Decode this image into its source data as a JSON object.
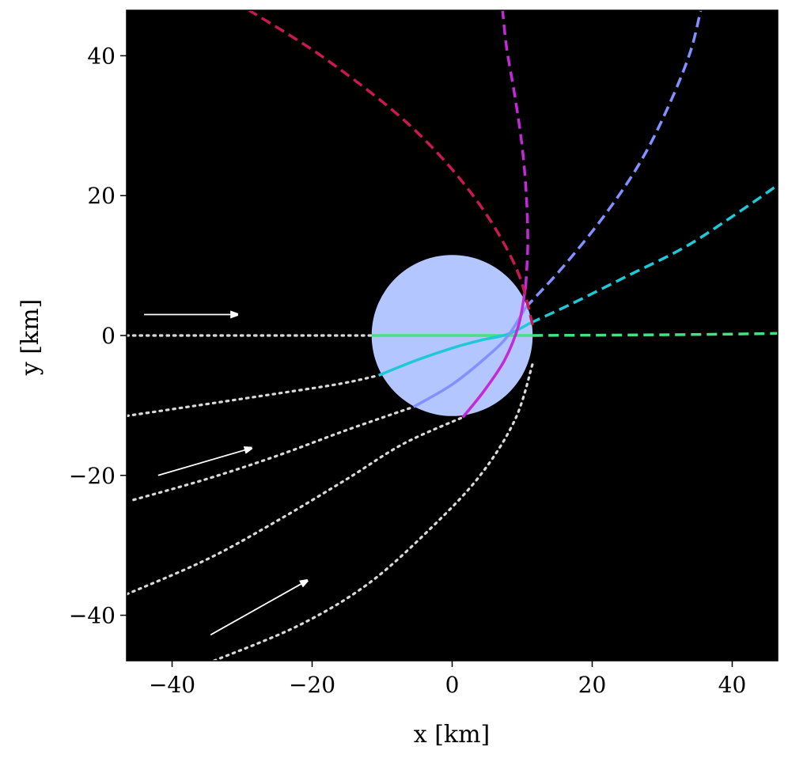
{
  "chart_data": {
    "type": "line",
    "title": "",
    "xlabel": "x [km]",
    "ylabel": "y [km]",
    "xlim": [
      -46.5,
      46.5
    ],
    "ylim": [
      -46.5,
      46.5
    ],
    "xticks": [
      -40,
      -20,
      0,
      20,
      40
    ],
    "yticks": [
      -40,
      -20,
      0,
      20,
      40
    ],
    "xtick_labels": [
      "−40",
      "−20",
      "0",
      "20",
      "40"
    ],
    "ytick_labels": [
      "−40",
      "−20",
      "0",
      "20",
      "40"
    ],
    "grid": false,
    "background_color": "#000000",
    "body": {
      "shape": "circle",
      "center": [
        0,
        0
      ],
      "radius": 11.5,
      "color": "#b3c6ff"
    },
    "series": [
      {
        "color": "#45e07f",
        "incoming": [
          [
            -46.5,
            0
          ],
          [
            -11.5,
            0
          ]
        ],
        "inside": [
          [
            -11.5,
            0
          ],
          [
            11.5,
            0
          ]
        ],
        "outgoing": [
          [
            11.5,
            0
          ],
          [
            20,
            0.05
          ],
          [
            30,
            0.1
          ],
          [
            40,
            0.2
          ],
          [
            46.5,
            0.3
          ]
        ]
      },
      {
        "color": "#1ec8d8",
        "incoming": [
          [
            -46.5,
            -11.5
          ],
          [
            -35,
            -9.8
          ],
          [
            -25,
            -8.3
          ],
          [
            -16,
            -6.9
          ],
          [
            -10.5,
            -5.7
          ]
        ],
        "inside": [
          [
            -10.5,
            -5.7
          ],
          [
            -5,
            -3.5
          ],
          [
            0,
            -1.8
          ],
          [
            4,
            -0.7
          ],
          [
            8,
            0.2
          ],
          [
            11.2,
            1.8
          ]
        ],
        "outgoing": [
          [
            11.2,
            1.8
          ],
          [
            17,
            4.5
          ],
          [
            25,
            8.5
          ],
          [
            33,
            12.5
          ],
          [
            40,
            17
          ],
          [
            46.5,
            21.5
          ]
        ]
      },
      {
        "color": "#8390ff",
        "incoming": [
          [
            -45.5,
            -23.5
          ],
          [
            -35,
            -20.5
          ],
          [
            -25,
            -17.2
          ],
          [
            -15,
            -13.5
          ],
          [
            -5.5,
            -10.2
          ]
        ],
        "inside": [
          [
            -5.5,
            -10.2
          ],
          [
            0,
            -7
          ],
          [
            5,
            -3
          ],
          [
            8,
            0
          ],
          [
            10.5,
            4
          ]
        ],
        "outgoing": [
          [
            10.5,
            4
          ],
          [
            16,
            10
          ],
          [
            22,
            17.5
          ],
          [
            27,
            25
          ],
          [
            31,
            33
          ],
          [
            34,
            40.5
          ],
          [
            35.5,
            46.5
          ]
        ]
      },
      {
        "color": "#c428d8",
        "incoming": [
          [
            -46.5,
            -37
          ],
          [
            -35,
            -32
          ],
          [
            -25,
            -26.5
          ],
          [
            -15,
            -20.5
          ],
          [
            -7,
            -15.5
          ],
          [
            1.5,
            -11.7
          ]
        ],
        "inside": [
          [
            1.5,
            -11.7
          ],
          [
            4.5,
            -8
          ],
          [
            7.5,
            -3.5
          ],
          [
            9.5,
            1.5
          ],
          [
            10.5,
            7
          ]
        ],
        "outgoing": [
          [
            10.5,
            7
          ],
          [
            10.8,
            13
          ],
          [
            10.6,
            20
          ],
          [
            10,
            27
          ],
          [
            9,
            34
          ],
          [
            7.8,
            41
          ],
          [
            7.2,
            46.5
          ]
        ]
      },
      {
        "color": "#c91852",
        "incoming": [
          [
            -34,
            -46.5
          ],
          [
            -22,
            -41.5
          ],
          [
            -12,
            -35.5
          ],
          [
            -3,
            -27.5
          ],
          [
            4,
            -20
          ],
          [
            9,
            -12
          ],
          [
            11.5,
            -4
          ]
        ],
        "inside": [],
        "outgoing": [
          [
            11.5,
            1.5
          ],
          [
            9,
            10
          ],
          [
            3,
            20
          ],
          [
            -6,
            30
          ],
          [
            -18,
            39.5
          ],
          [
            -29,
            46.5
          ]
        ]
      }
    ],
    "incoming_color": "#d9d9d9",
    "arrows": [
      {
        "from": [
          -44,
          3
        ],
        "to": [
          -31,
          3
        ]
      },
      {
        "from": [
          -42,
          -20
        ],
        "to": [
          -29,
          -16.2
        ]
      },
      {
        "from": [
          -34.5,
          -42.8
        ],
        "to": [
          -21,
          -35.2
        ]
      }
    ]
  }
}
